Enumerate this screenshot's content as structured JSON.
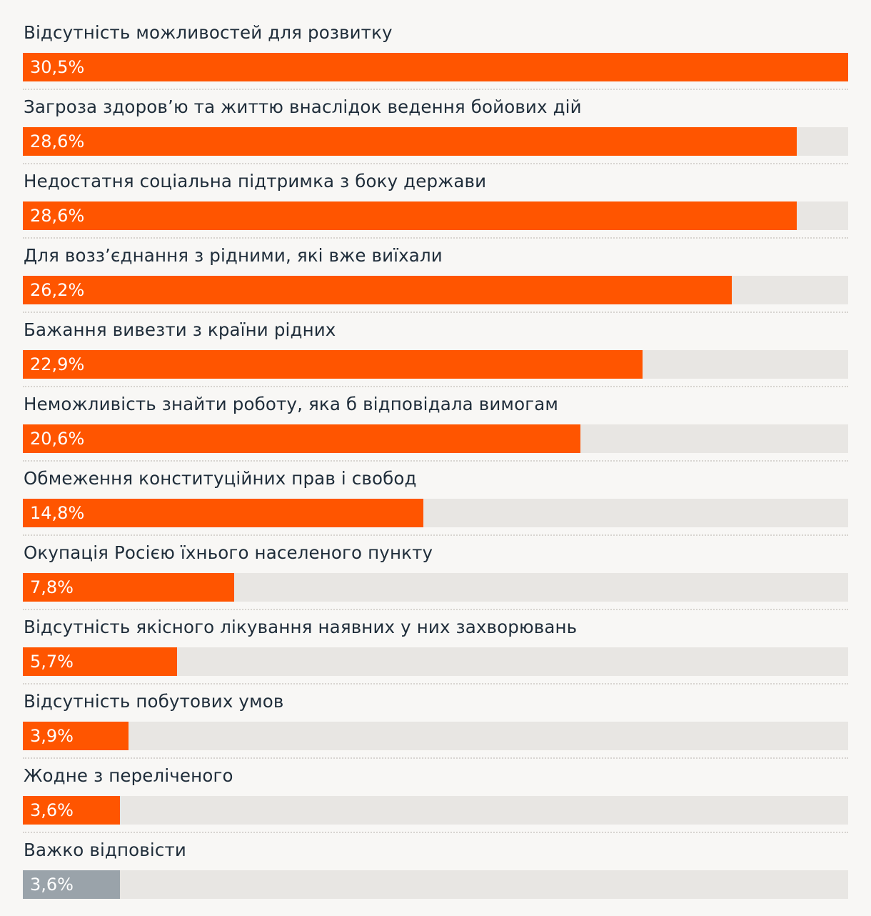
{
  "chart_data": {
    "type": "bar",
    "orientation": "horizontal",
    "categories": [
      "Відсутність можливостей для розвитку",
      "Загроза здоров’ю та життю внаслідок ведення бойових дій",
      "Недостатня соціальна підтримка з боку держави",
      "Для возз’єднання з рідними, які вже виїхали",
      "Бажання вивезти з країни рідних",
      "Неможливість знайти роботу, яка б відповідала вимогам",
      "Обмеження конституційних прав і свобод",
      "Окупація Росією їхнього населеного пункту",
      "Відсутність якісного лікування наявних у них захворювань",
      "Відсутність побутових умов",
      "Жодне з переліченого",
      "Важко відповісти"
    ],
    "values": [
      30.5,
      28.6,
      28.6,
      26.2,
      22.9,
      20.6,
      14.8,
      7.8,
      5.7,
      3.9,
      3.6,
      3.6
    ],
    "value_labels": [
      "30,5%",
      "28,6%",
      "28,6%",
      "26,2%",
      "22,9%",
      "20,6%",
      "14,8%",
      "7,8%",
      "5,7%",
      "3,9%",
      "3,6%",
      "3,6%"
    ],
    "xlim": [
      0,
      30.5
    ],
    "colors": {
      "bar": "#ff5500",
      "bar_muted": "#9aa3aa",
      "track": "#e8e6e3",
      "background": "#f8f7f5",
      "label": "#1f2d3a",
      "value_text": "#ffffff"
    },
    "muted_categories": [
      "Важко відповісти"
    ],
    "grid": false,
    "legend": "none"
  }
}
